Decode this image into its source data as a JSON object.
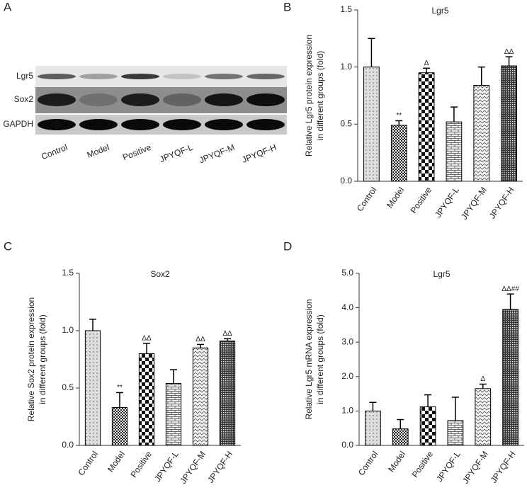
{
  "blot": {
    "panel_label": "A",
    "rows": [
      "Lgr5",
      "Sox2",
      "GAPDH"
    ],
    "lanes": [
      "Control",
      "Model",
      "Positive",
      "JPYQF-L",
      "JPYQF-M",
      "JPYQF-H"
    ]
  },
  "chart_data": [
    {
      "type": "bar",
      "panel_label": "B",
      "title": "Lgr5",
      "ylabel": [
        "Relative Lgr5 protein expression",
        "in different groups (fold)"
      ],
      "categories": [
        "Control",
        "Model",
        "Positive",
        "JPYQF-L",
        "JPYQF-M",
        "JPYQF-H"
      ],
      "values": [
        1.0,
        0.49,
        0.95,
        0.52,
        0.84,
        1.01
      ],
      "errors": [
        0.25,
        0.04,
        0.04,
        0.13,
        0.16,
        0.08
      ],
      "annotations": [
        null,
        "**",
        "Δ",
        null,
        null,
        "ΔΔ"
      ],
      "ylim": [
        0,
        1.5
      ],
      "yticks": [
        {
          "value": 0,
          "label": "0.0"
        },
        {
          "value": 0.5,
          "label": "0.5"
        },
        {
          "value": 1,
          "label": "1.0"
        },
        {
          "value": 1.5,
          "label": "1.5"
        }
      ]
    },
    {
      "type": "bar",
      "panel_label": "C",
      "title": "Sox2",
      "ylabel": [
        "Relative Sox2 protein expression",
        "in different groups (fold)"
      ],
      "categories": [
        "Control",
        "Model",
        "Positive",
        "JPYQF-L",
        "JPYQF-M",
        "JPYQF-H"
      ],
      "values": [
        1.0,
        0.33,
        0.8,
        0.54,
        0.85,
        0.91
      ],
      "errors": [
        0.1,
        0.13,
        0.09,
        0.12,
        0.03,
        0.02
      ],
      "annotations": [
        null,
        "**",
        "ΔΔ",
        null,
        "ΔΔ",
        "ΔΔ"
      ],
      "ylim": [
        0,
        1.5
      ],
      "yticks": [
        {
          "value": 0,
          "label": "0.0"
        },
        {
          "value": 0.5,
          "label": "0.5"
        },
        {
          "value": 1,
          "label": "1.0"
        },
        {
          "value": 1.5,
          "label": "1.5"
        }
      ]
    },
    {
      "type": "bar",
      "panel_label": "D",
      "title": "Lgr5",
      "ylabel": [
        "Relative Lgr5 mRNA expression",
        "in different groups (fold)"
      ],
      "categories": [
        "Control",
        "Model",
        "Positive",
        "JPYQF-L",
        "JPYQF-M",
        "JPYQF-H"
      ],
      "values": [
        1.0,
        0.48,
        1.12,
        0.72,
        1.65,
        3.95
      ],
      "errors": [
        0.25,
        0.27,
        0.35,
        0.68,
        0.13,
        0.45
      ],
      "annotations": [
        null,
        null,
        null,
        null,
        "Δ",
        "ΔΔ##"
      ],
      "ylim": [
        0,
        5
      ],
      "yticks": [
        {
          "value": 0,
          "label": "0.0"
        },
        {
          "value": 1,
          "label": "1.0"
        },
        {
          "value": 2,
          "label": "2.0"
        },
        {
          "value": 3,
          "label": "3.0"
        },
        {
          "value": 4,
          "label": "4.0"
        },
        {
          "value": 5,
          "label": "5.0"
        }
      ]
    }
  ]
}
